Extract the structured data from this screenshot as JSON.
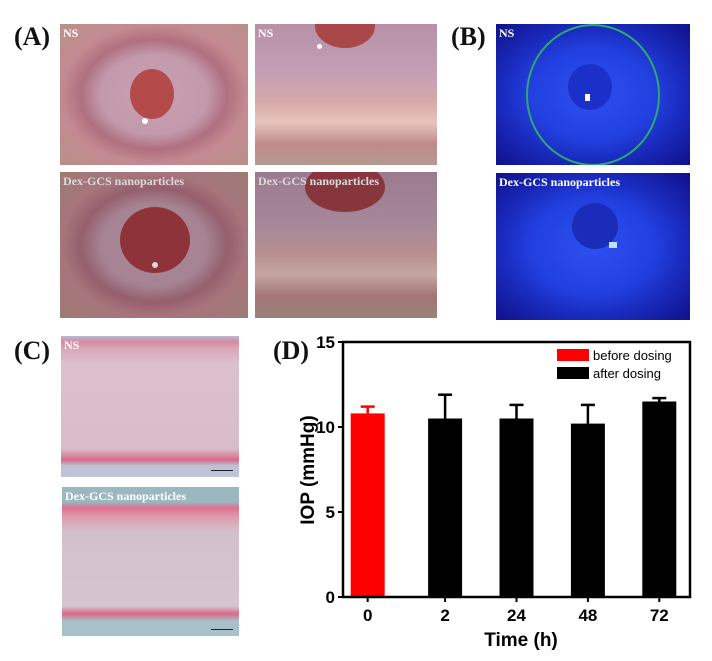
{
  "figure": {
    "panels": {
      "A": {
        "label": "(A)",
        "images": [
          {
            "caption": "NS"
          },
          {
            "caption": "NS"
          },
          {
            "caption": "Dex-GCS nanoparticles"
          },
          {
            "caption": "Dex-GCS nanoparticles"
          }
        ]
      },
      "B": {
        "label": "(B)",
        "images": [
          {
            "caption": "NS"
          },
          {
            "caption": "Dex-GCS nanoparticles"
          }
        ]
      },
      "C": {
        "label": "(C)",
        "images": [
          {
            "caption": "NS"
          },
          {
            "caption": "Dex-GCS nanoparticles"
          }
        ]
      },
      "D": {
        "label": "(D)"
      }
    }
  },
  "chart_data": {
    "type": "bar",
    "title": "",
    "xlabel": "Time (h)",
    "ylabel": "IOP (mmHg)",
    "ylim": [
      0,
      15
    ],
    "yticks": [
      "0",
      "5",
      "10",
      "15"
    ],
    "categories": [
      "0",
      "2",
      "24",
      "48",
      "72"
    ],
    "values": [
      10.8,
      10.5,
      10.5,
      10.2,
      11.5
    ],
    "errors": [
      0.4,
      1.4,
      0.8,
      1.1,
      0.2
    ],
    "colors": [
      "#ff0000",
      "#000000",
      "#000000",
      "#000000",
      "#000000"
    ],
    "legend": [
      {
        "label": "before dosing",
        "color": "#ff0000"
      },
      {
        "label": "after dosing",
        "color": "#000000"
      }
    ],
    "legend_position": "top-right",
    "grid": false
  }
}
